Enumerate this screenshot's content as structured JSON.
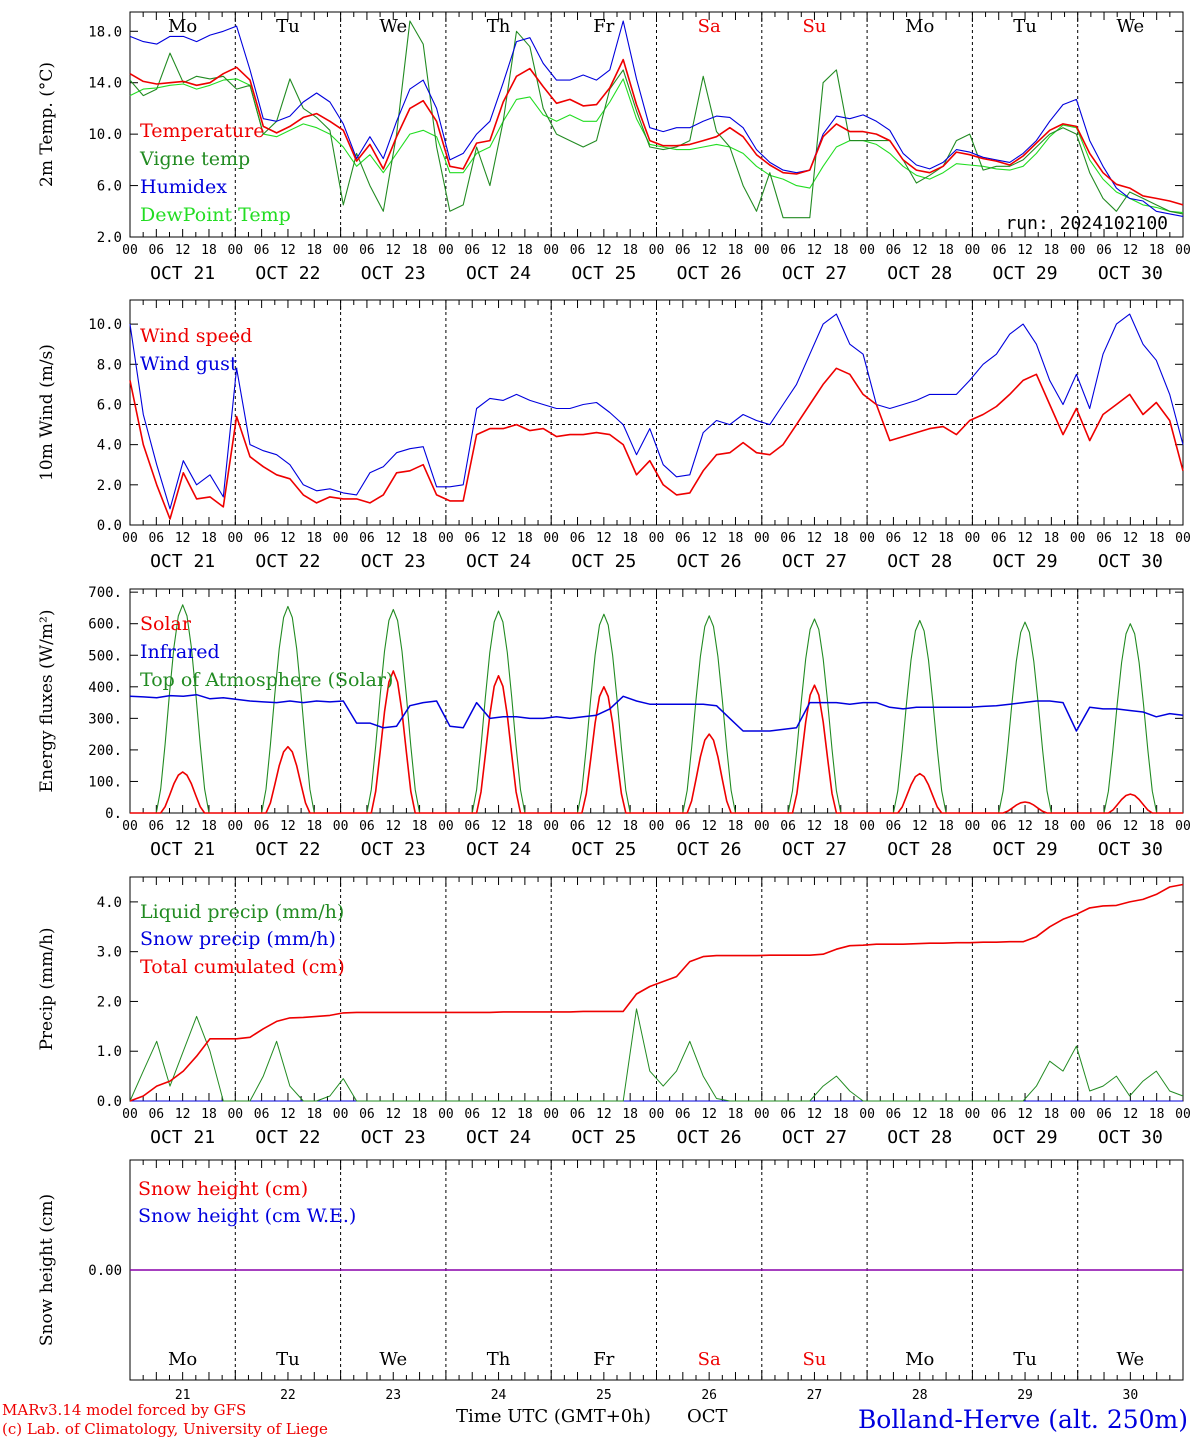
{
  "colors": {
    "red": "#ee0000",
    "green": "#228b22",
    "blue": "#0000dd",
    "lightgreen": "#22dd22",
    "purple": "#8800aa"
  },
  "days": [
    "Mo",
    "Tu",
    "We",
    "Th",
    "Fr",
    "Sa",
    "Su",
    "Mo",
    "Tu",
    "We"
  ],
  "weekend_flags": [
    false,
    false,
    false,
    false,
    false,
    true,
    true,
    false,
    false,
    false
  ],
  "dates": [
    "OCT 21",
    "OCT 22",
    "OCT 23",
    "OCT 24",
    "OCT 25",
    "OCT 26",
    "OCT 27",
    "OCT 28",
    "OCT 29",
    "OCT 30"
  ],
  "hour_ticks": [
    "00",
    "06",
    "12",
    "18"
  ],
  "hour_end": "00",
  "run_label": "run: 2024102100",
  "bottom_day_numbers": [
    "21",
    "22",
    "23",
    "24",
    "25",
    "26",
    "27",
    "28",
    "29",
    "30"
  ],
  "footer": {
    "model_line": "MARv3.14 model forced by GFS",
    "copyright_line": "(c) Lab. of Climatology, University of Liege",
    "time_axis_label": "Time UTC (GMT+0h)",
    "month_label": "OCT",
    "station": "Bolland-Herve (alt. 250m)"
  },
  "chart_data": [
    {
      "type": "line",
      "ylabel": "2m Temp. (°C)",
      "ylim": [
        2,
        19.5
      ],
      "yticks": [
        "2.0",
        "6.0",
        "10.0",
        "14.0",
        "18.0"
      ],
      "ytick_values": [
        2,
        6,
        10,
        14,
        18
      ],
      "x_unit": "hours since OCT 21 00 UTC (3-hourly)",
      "series": [
        {
          "name": "Temperature",
          "color": "red",
          "values": [
            14.7,
            14.1,
            13.9,
            14.0,
            14.1,
            13.8,
            14.0,
            14.7,
            15.2,
            14.2,
            10.6,
            10.1,
            10.6,
            11.3,
            11.6,
            11.0,
            10.3,
            7.9,
            9.2,
            7.3,
            9.8,
            12.0,
            12.6,
            11.0,
            7.5,
            7.3,
            9.3,
            9.5,
            12.5,
            14.5,
            15.1,
            13.7,
            12.4,
            12.7,
            12.2,
            12.3,
            13.6,
            15.8,
            12.3,
            9.5,
            9.1,
            9.1,
            9.2,
            9.5,
            9.8,
            10.5,
            9.8,
            8.4,
            7.6,
            7.0,
            6.9,
            7.2,
            9.8,
            10.8,
            10.2,
            10.2,
            10.0,
            9.5,
            8.0,
            7.2,
            7.0,
            7.5,
            8.6,
            8.4,
            8.1,
            7.9,
            7.6,
            8.3,
            9.3,
            10.3,
            10.8,
            10.6,
            8.5,
            7.0,
            6.1,
            5.8,
            5.2,
            5.0,
            4.8,
            4.5
          ]
        },
        {
          "name": "Vigne temp",
          "color": "green",
          "values": [
            14.2,
            13.0,
            13.5,
            16.3,
            14.0,
            14.5,
            14.3,
            14.5,
            13.5,
            13.8,
            10.0,
            11.0,
            14.3,
            12.0,
            11.3,
            10.3,
            4.5,
            8.5,
            6.0,
            4.0,
            10.0,
            18.8,
            17.0,
            9.0,
            4.0,
            4.5,
            9.0,
            6.0,
            11.0,
            18.0,
            16.8,
            12.0,
            10.0,
            9.5,
            9.0,
            9.5,
            13.5,
            15.0,
            11.8,
            9.0,
            8.8,
            9.0,
            9.5,
            14.5,
            10.2,
            9.0,
            6.0,
            4.0,
            7.0,
            3.5,
            3.5,
            3.5,
            14.0,
            15.0,
            9.5,
            9.5,
            9.5,
            9.5,
            8.0,
            6.2,
            6.8,
            7.5,
            9.5,
            10.0,
            7.2,
            7.5,
            7.5,
            8.0,
            9.0,
            10.0,
            10.5,
            10.0,
            7.0,
            5.0,
            4.0,
            5.5,
            5.0,
            4.5,
            4.0,
            3.8
          ]
        },
        {
          "name": "Humidex",
          "color": "blue",
          "values": [
            17.6,
            17.2,
            17.0,
            17.6,
            17.6,
            17.2,
            17.7,
            18.0,
            18.4,
            15.0,
            11.2,
            11.0,
            11.4,
            12.5,
            13.2,
            12.5,
            10.8,
            8.1,
            9.8,
            8.1,
            11.0,
            13.5,
            14.2,
            12.0,
            8.0,
            8.5,
            10.0,
            11.0,
            14.0,
            17.2,
            17.5,
            15.5,
            14.2,
            14.2,
            14.6,
            14.2,
            15.0,
            18.8,
            14.3,
            10.5,
            10.2,
            10.5,
            10.5,
            11.0,
            11.4,
            11.3,
            10.5,
            8.8,
            7.8,
            7.2,
            7.0,
            7.2,
            10.0,
            11.4,
            11.2,
            11.5,
            11.0,
            10.3,
            8.5,
            7.6,
            7.3,
            7.8,
            8.8,
            8.6,
            8.2,
            8.0,
            7.8,
            8.5,
            9.5,
            11.0,
            12.3,
            12.7,
            9.5,
            7.5,
            5.8,
            5.0,
            4.8,
            4.0,
            3.8,
            3.6
          ]
        },
        {
          "name": "DewPoint Temp",
          "color": "lightgreen",
          "values": [
            13.0,
            13.5,
            13.6,
            13.8,
            13.9,
            13.5,
            13.8,
            14.2,
            14.3,
            13.8,
            10.0,
            9.8,
            10.3,
            10.8,
            10.5,
            10.0,
            9.0,
            7.5,
            8.4,
            7.0,
            8.5,
            10.0,
            10.3,
            9.8,
            7.0,
            7.0,
            8.5,
            9.0,
            11.0,
            12.7,
            12.9,
            11.5,
            11.0,
            11.5,
            11.0,
            11.0,
            12.5,
            14.3,
            11.2,
            9.2,
            9.0,
            8.8,
            8.8,
            9.0,
            9.2,
            9.0,
            8.5,
            7.5,
            6.8,
            6.5,
            6.0,
            5.8,
            7.5,
            9.0,
            9.5,
            9.5,
            9.2,
            8.5,
            7.5,
            6.8,
            6.5,
            7.0,
            7.7,
            7.6,
            7.5,
            7.3,
            7.2,
            7.5,
            8.5,
            9.8,
            10.7,
            10.5,
            8.0,
            6.5,
            5.5,
            5.0,
            4.5,
            4.3,
            4.0,
            3.9
          ]
        }
      ]
    },
    {
      "type": "line",
      "ylabel": "10m Wind (m/s)",
      "ylim": [
        0,
        11.2
      ],
      "yticks": [
        "0.0",
        "2.0",
        "4.0",
        "6.0",
        "8.0",
        "10.0"
      ],
      "ytick_values": [
        0,
        2,
        4,
        6,
        8,
        10
      ],
      "ref_line": 5,
      "series": [
        {
          "name": "Wind speed",
          "color": "red",
          "values": [
            7.2,
            4.0,
            2.0,
            0.3,
            2.6,
            1.3,
            1.4,
            0.9,
            5.4,
            3.4,
            2.9,
            2.5,
            2.3,
            1.5,
            1.1,
            1.4,
            1.3,
            1.3,
            1.1,
            1.5,
            2.6,
            2.7,
            3.0,
            1.5,
            1.2,
            1.2,
            4.5,
            4.8,
            4.8,
            5.0,
            4.7,
            4.8,
            4.4,
            4.5,
            4.5,
            4.6,
            4.5,
            4.0,
            2.5,
            3.2,
            2.0,
            1.5,
            1.6,
            2.7,
            3.5,
            3.6,
            4.1,
            3.6,
            3.5,
            4.0,
            5.0,
            6.0,
            7.0,
            7.8,
            7.5,
            6.5,
            6.0,
            4.2,
            4.4,
            4.6,
            4.8,
            4.9,
            4.5,
            5.2,
            5.5,
            5.9,
            6.5,
            7.2,
            7.5,
            6.0,
            4.5,
            5.8,
            4.2,
            5.5,
            6.0,
            6.5,
            5.5,
            6.1,
            5.2,
            2.7
          ]
        },
        {
          "name": "Wind gust",
          "color": "blue",
          "values": [
            10.0,
            5.5,
            3.0,
            0.8,
            3.2,
            2.0,
            2.5,
            1.4,
            7.8,
            4.0,
            3.7,
            3.5,
            3.0,
            2.0,
            1.7,
            1.8,
            1.6,
            1.5,
            2.6,
            2.9,
            3.6,
            3.8,
            3.9,
            1.9,
            1.9,
            2.0,
            5.8,
            6.3,
            6.2,
            6.5,
            6.2,
            6.0,
            5.8,
            5.8,
            6.0,
            6.1,
            5.6,
            5.0,
            3.5,
            4.8,
            3.0,
            2.4,
            2.5,
            4.6,
            5.2,
            5.0,
            5.5,
            5.2,
            5.0,
            6.0,
            7.0,
            8.5,
            10.0,
            10.5,
            9.0,
            8.5,
            6.0,
            5.8,
            6.0,
            6.2,
            6.5,
            6.5,
            6.5,
            7.2,
            8.0,
            8.5,
            9.5,
            10.0,
            9.0,
            7.2,
            6.0,
            7.5,
            5.8,
            8.5,
            10.0,
            10.5,
            9.0,
            8.2,
            6.5,
            4.0
          ]
        }
      ]
    },
    {
      "type": "line",
      "ylabel": "Energy fluxes (W/m²)",
      "ylim": [
        0,
        710
      ],
      "yticks": [
        "0.",
        "100.",
        "200.",
        "300.",
        "400.",
        "500.",
        "600.",
        "700."
      ],
      "ytick_values": [
        0,
        100,
        200,
        300,
        400,
        500,
        600,
        700
      ],
      "series": [
        {
          "name": "Solar",
          "color": "red",
          "peak_hours": [
            12,
            12,
            12,
            12,
            12,
            12,
            12,
            12,
            12,
            12
          ],
          "daily_peaks": [
            130,
            210,
            450,
            435,
            400,
            250,
            405,
            125,
            35,
            60
          ]
        },
        {
          "name": "Infrared",
          "color": "blue",
          "values": [
            370,
            368,
            365,
            372,
            370,
            375,
            362,
            365,
            360,
            355,
            352,
            350,
            355,
            350,
            355,
            352,
            355,
            285,
            285,
            270,
            275,
            340,
            350,
            355,
            275,
            270,
            350,
            300,
            305,
            305,
            300,
            300,
            305,
            300,
            305,
            310,
            330,
            370,
            355,
            345,
            345,
            345,
            345,
            345,
            340,
            300,
            260,
            260,
            260,
            265,
            270,
            350,
            350,
            350,
            345,
            350,
            350,
            335,
            330,
            335,
            335,
            335,
            335,
            335,
            338,
            340,
            345,
            350,
            355,
            355,
            350,
            260,
            335,
            330,
            330,
            325,
            320,
            305,
            315,
            310
          ]
        },
        {
          "name": "Top of Atmosphere (Solar)",
          "color": "green",
          "daily_peaks": [
            660,
            655,
            645,
            640,
            630,
            625,
            615,
            610,
            605,
            600
          ]
        }
      ]
    },
    {
      "type": "line",
      "ylabel": "Precip (mm/h)",
      "ylim": [
        0,
        4.5
      ],
      "yticks": [
        "0.0",
        "1.0",
        "2.0",
        "3.0",
        "4.0"
      ],
      "ytick_values": [
        0,
        1,
        2,
        3,
        4
      ],
      "series": [
        {
          "name": "Liquid precip (mm/h)",
          "color": "green",
          "values": [
            0.0,
            0.6,
            1.2,
            0.3,
            1.0,
            1.7,
            1.0,
            0.0,
            0.0,
            0.0,
            0.5,
            1.2,
            0.3,
            0.0,
            0.0,
            0.1,
            0.45,
            0.0,
            0.0,
            0.0,
            0.0,
            0.0,
            0.0,
            0.0,
            0.0,
            0.0,
            0.0,
            0.0,
            0.0,
            0.0,
            0.0,
            0.0,
            0.0,
            0.0,
            0.0,
            0.0,
            0.0,
            0.0,
            1.85,
            0.6,
            0.3,
            0.6,
            1.2,
            0.5,
            0.05,
            0.0,
            0.0,
            0.0,
            0.0,
            0.0,
            0.0,
            0.0,
            0.3,
            0.5,
            0.2,
            0.0,
            0.0,
            0.0,
            0.0,
            0.0,
            0.0,
            0.0,
            0.0,
            0.0,
            0.0,
            0.0,
            0.0,
            0.0,
            0.3,
            0.8,
            0.6,
            1.1,
            0.2,
            0.3,
            0.5,
            0.1,
            0.4,
            0.6,
            0.2,
            0.1
          ]
        },
        {
          "name": "Snow precip (mm/h)",
          "color": "blue",
          "values": [
            0,
            0,
            0,
            0,
            0,
            0,
            0,
            0,
            0,
            0,
            0,
            0,
            0,
            0,
            0,
            0,
            0,
            0,
            0,
            0,
            0,
            0,
            0,
            0,
            0,
            0,
            0,
            0,
            0,
            0,
            0,
            0,
            0,
            0,
            0,
            0,
            0,
            0,
            0,
            0,
            0,
            0,
            0,
            0,
            0,
            0,
            0,
            0,
            0,
            0,
            0,
            0,
            0,
            0,
            0,
            0,
            0,
            0,
            0,
            0,
            0,
            0,
            0,
            0,
            0,
            0,
            0,
            0,
            0,
            0,
            0,
            0,
            0,
            0,
            0,
            0,
            0,
            0,
            0,
            0
          ]
        },
        {
          "name": "Total cumulated (cm)",
          "color": "red",
          "values": [
            0.0,
            0.1,
            0.3,
            0.4,
            0.6,
            0.9,
            1.25,
            1.25,
            1.25,
            1.28,
            1.45,
            1.6,
            1.67,
            1.68,
            1.7,
            1.72,
            1.77,
            1.78,
            1.78,
            1.78,
            1.78,
            1.78,
            1.78,
            1.78,
            1.78,
            1.78,
            1.78,
            1.78,
            1.79,
            1.79,
            1.79,
            1.79,
            1.79,
            1.79,
            1.8,
            1.8,
            1.8,
            1.8,
            2.15,
            2.3,
            2.4,
            2.5,
            2.8,
            2.9,
            2.92,
            2.92,
            2.92,
            2.92,
            2.93,
            2.93,
            2.93,
            2.93,
            2.95,
            3.05,
            3.12,
            3.13,
            3.15,
            3.15,
            3.15,
            3.16,
            3.17,
            3.17,
            3.18,
            3.18,
            3.19,
            3.19,
            3.2,
            3.2,
            3.3,
            3.5,
            3.65,
            3.75,
            3.88,
            3.92,
            3.93,
            4.0,
            4.05,
            4.15,
            4.3,
            4.35
          ]
        }
      ]
    },
    {
      "type": "line",
      "ylabel": "Snow height (cm)",
      "ylim": [
        -1,
        1
      ],
      "yticks": [
        "0.00"
      ],
      "ytick_values": [
        0
      ],
      "series": [
        {
          "name": "Snow height (cm)",
          "color": "red",
          "values": [
            0,
            0
          ]
        },
        {
          "name": "Snow height (cm W.E.)",
          "color": "blue",
          "values": [
            0,
            0
          ]
        }
      ]
    }
  ]
}
